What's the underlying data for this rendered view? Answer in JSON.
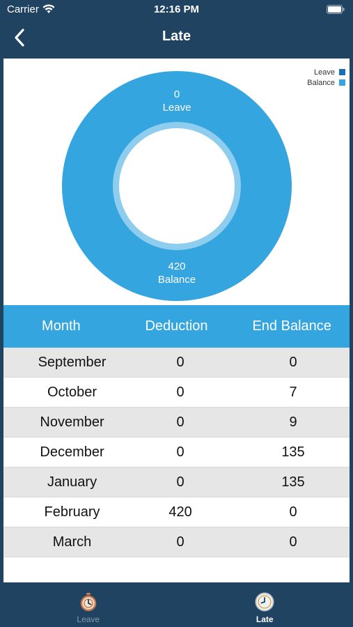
{
  "status_bar": {
    "carrier": "Carrier",
    "time": "12:16 PM"
  },
  "nav": {
    "title": "Late",
    "back_icon": "chevron-left-icon"
  },
  "legend": [
    {
      "label": "Leave",
      "color": "#1a70b5"
    },
    {
      "label": "Balance",
      "color": "#35a5e0"
    }
  ],
  "chart_data": {
    "type": "pie",
    "title": "",
    "slices": [
      {
        "name": "Leave",
        "value": 0,
        "label_value": "0",
        "label_name": "Leave",
        "color": "#1a70b5"
      },
      {
        "name": "Balance",
        "value": 420,
        "label_value": "420",
        "label_name": "Balance",
        "color": "#35a5e0"
      }
    ],
    "legend_position": "top-right"
  },
  "table": {
    "headers": [
      "Month",
      "Deduction",
      "End Balance"
    ],
    "rows": [
      [
        "September",
        "0",
        "0"
      ],
      [
        "October",
        "0",
        "7"
      ],
      [
        "November",
        "0",
        "9"
      ],
      [
        "December",
        "0",
        "135"
      ],
      [
        "January",
        "0",
        "135"
      ],
      [
        "February",
        "420",
        "0"
      ],
      [
        "March",
        "0",
        "0"
      ]
    ]
  },
  "tabs": [
    {
      "label": "Leave",
      "icon": "stopwatch-icon",
      "active": false
    },
    {
      "label": "Late",
      "icon": "clock-icon",
      "active": true
    }
  ]
}
